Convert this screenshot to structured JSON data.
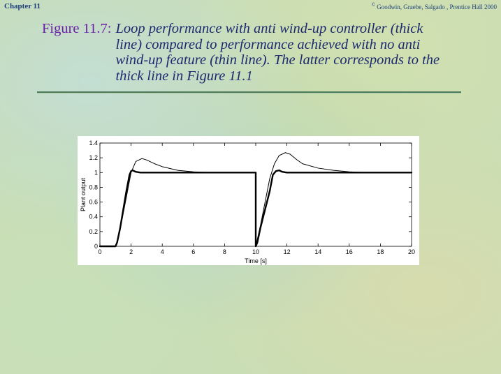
{
  "header": {
    "chapter": "Chapter 11",
    "copyright_symbol": "©",
    "copyright": "Goodwin, Graebe, Salgado , Prentice Hall 2000"
  },
  "figure": {
    "label": "Figure 11.7:",
    "caption": "Loop performance with anti wind-up controller (thick line) compared to performance achieved with no anti wind-up feature (thin line). The latter corresponds to the thick line in Figure 11.1"
  },
  "chart_data": {
    "type": "line",
    "title": "",
    "xlabel": "Time [s]",
    "ylabel": "Plant output",
    "xlim": [
      0,
      20
    ],
    "ylim": [
      0,
      1.4
    ],
    "x_ticks": [
      0,
      2,
      4,
      6,
      8,
      10,
      12,
      14,
      16,
      18,
      20
    ],
    "y_ticks": [
      0,
      0.2,
      0.4,
      0.6,
      0.8,
      1,
      1.2,
      1.4
    ],
    "x_tick_labels": [
      "0",
      "2",
      "4",
      "6",
      "8",
      "10",
      "12",
      "14",
      "16",
      "18",
      "20"
    ],
    "y_tick_labels": [
      "0",
      "0.2",
      "0.4",
      "0.6",
      "0.8",
      "1",
      "1.2",
      "1.4"
    ],
    "grid": false,
    "series": [
      {
        "line_style": "thick",
        "color": "#000000",
        "x": [
          0,
          1.0,
          1.1,
          1.3,
          1.5,
          1.7,
          1.9,
          2.0,
          2.1,
          2.3,
          2.6,
          3.0,
          10.0,
          10.0,
          10.1,
          10.3,
          10.6,
          10.9,
          11.1,
          11.3,
          11.5,
          11.7,
          12.0,
          12.5,
          20.0
        ],
        "y": [
          0,
          0,
          0.05,
          0.25,
          0.5,
          0.75,
          0.97,
          1.02,
          1.03,
          1.01,
          1.0,
          1.0,
          1.0,
          0,
          0.05,
          0.25,
          0.5,
          0.75,
          0.97,
          1.02,
          1.03,
          1.01,
          1.0,
          1.0,
          1.0
        ]
      },
      {
        "line_style": "thin",
        "color": "#000000",
        "x": [
          0,
          1.0,
          1.2,
          1.5,
          1.8,
          2.0,
          2.3,
          2.7,
          3.0,
          3.5,
          4.0,
          5.0,
          6.0,
          7.0,
          10.0,
          10.0,
          10.3,
          10.6,
          10.9,
          11.2,
          11.5,
          11.9,
          12.2,
          12.6,
          13.0,
          14.0,
          15.0,
          16.0,
          17.0,
          20.0
        ],
        "y": [
          0,
          0,
          0.12,
          0.45,
          0.78,
          1.0,
          1.15,
          1.19,
          1.17,
          1.12,
          1.08,
          1.03,
          1.01,
          1.0,
          1.0,
          0,
          0.28,
          0.6,
          0.92,
          1.12,
          1.23,
          1.27,
          1.25,
          1.18,
          1.12,
          1.06,
          1.03,
          1.01,
          1.0,
          1.0
        ]
      }
    ]
  }
}
